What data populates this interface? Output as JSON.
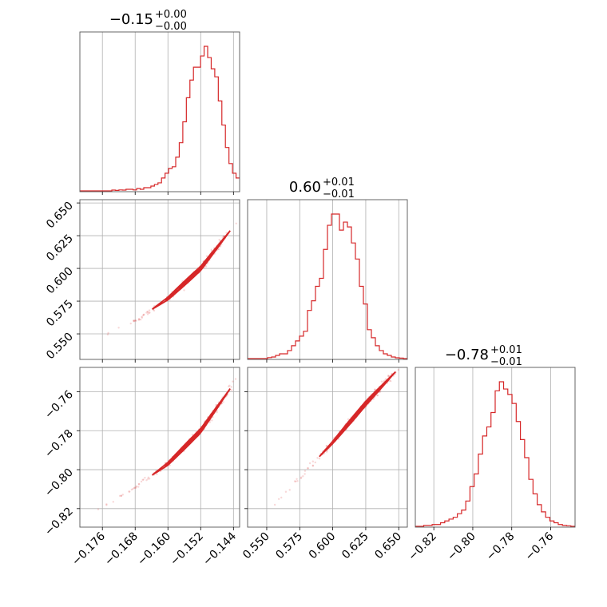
{
  "figure": {
    "type": "corner-plot"
  },
  "colors": {
    "line": "#d62728",
    "grid": "#b0b0b0",
    "axes": "#555555"
  },
  "chart_data": [
    {
      "type": "histogram",
      "panel": "p0",
      "title": {
        "base": "−0.15",
        "sup": "+0.00",
        "sub": "−0.00"
      },
      "xlim": [
        -0.1815,
        -0.1425
      ],
      "xticks": [
        -0.176,
        -0.168,
        -0.16,
        -0.152,
        -0.144
      ],
      "xticklabels": [
        "−0.176",
        "−0.168",
        "−0.160",
        "−0.152",
        "−0.144"
      ],
      "counts": [
        0,
        0,
        0,
        0,
        0,
        0,
        0,
        0,
        0,
        0.5,
        0.3,
        0.6,
        0.5,
        1,
        1,
        0.6,
        1.5,
        1,
        2,
        2,
        3,
        4,
        5,
        8,
        11,
        14,
        15,
        21,
        30,
        43,
        58,
        69,
        77,
        77,
        84,
        90,
        83,
        76,
        71,
        56,
        41,
        27,
        17,
        11,
        8
      ],
      "grid": true
    },
    {
      "type": "histogram",
      "panel": "p1",
      "title": {
        "base": "0.60",
        "sup": "+0.01",
        "sub": "−0.01"
      },
      "xlim": [
        0.5355,
        0.6565
      ],
      "xticks": [
        0.55,
        0.575,
        0.6,
        0.625,
        0.65
      ],
      "xticklabels": [
        "0.550",
        "0.575",
        "0.600",
        "0.625",
        "0.650"
      ],
      "counts": [
        0,
        0,
        0,
        0,
        0,
        0.6,
        1,
        2,
        3,
        3,
        5,
        8,
        11,
        14,
        17,
        30,
        36,
        45,
        50,
        68,
        83,
        90,
        90,
        80,
        85,
        82,
        72,
        62,
        45,
        34,
        18,
        13,
        8,
        5,
        3,
        2,
        1,
        0.5,
        0.3,
        0
      ],
      "grid": true
    },
    {
      "type": "histogram",
      "panel": "p2",
      "title": {
        "base": "−0.78",
        "sup": "+0.01",
        "sub": "−0.01"
      },
      "xlim": [
        -0.8295,
        -0.7475
      ],
      "xticks": [
        -0.82,
        -0.8,
        -0.78,
        -0.76
      ],
      "xticklabels": [
        "−0.82",
        "−0.80",
        "−0.78",
        "−0.76"
      ],
      "counts": [
        0,
        0,
        0.5,
        0.5,
        1,
        1,
        2,
        3,
        4,
        5,
        7,
        9,
        14,
        22,
        29,
        40,
        50,
        55,
        63,
        75,
        80,
        76,
        73,
        68,
        58,
        48,
        38,
        26,
        18,
        12,
        8,
        5,
        3,
        2,
        1,
        0.5,
        0.3,
        0
      ],
      "grid": true
    },
    {
      "type": "scatter",
      "panel": "p3",
      "x_param": 0,
      "y_param": 1,
      "xlim": [
        -0.1815,
        -0.1425
      ],
      "ylim": [
        0.5305,
        0.6525
      ],
      "yticks": [
        0.55,
        0.575,
        0.6,
        0.625,
        0.65
      ],
      "yticklabels": [
        "0.550",
        "0.575",
        "0.600",
        "0.625",
        "0.650"
      ],
      "ridge": {
        "x": [
          -0.176,
          -0.168,
          -0.16,
          -0.152,
          -0.144
        ],
        "y": [
          0.548,
          0.56,
          0.577,
          0.6,
          0.632
        ]
      },
      "grid": true
    },
    {
      "type": "scatter",
      "panel": "p4",
      "x_param": 0,
      "y_param": 2,
      "xlim": [
        -0.1815,
        -0.1425
      ],
      "ylim": [
        -0.8295,
        -0.7475
      ],
      "yticks": [
        -0.82,
        -0.8,
        -0.78,
        -0.76
      ],
      "yticklabels": [
        "−0.82",
        "−0.80",
        "−0.78",
        "−0.76"
      ],
      "ridge": {
        "x": [
          -0.176,
          -0.168,
          -0.16,
          -0.152,
          -0.144
        ],
        "y": [
          -0.819,
          -0.809,
          -0.797,
          -0.78,
          -0.756
        ]
      },
      "grid": true
    },
    {
      "type": "scatter",
      "panel": "p5",
      "x_param": 1,
      "y_param": 2,
      "xlim": [
        0.5355,
        0.6565
      ],
      "ylim": [
        -0.8295,
        -0.7475
      ],
      "ridge": {
        "x": [
          0.553,
          0.575,
          0.6,
          0.625,
          0.65
        ],
        "y": [
          -0.82,
          -0.804,
          -0.786,
          -0.766,
          -0.748
        ]
      },
      "grid": true
    }
  ]
}
